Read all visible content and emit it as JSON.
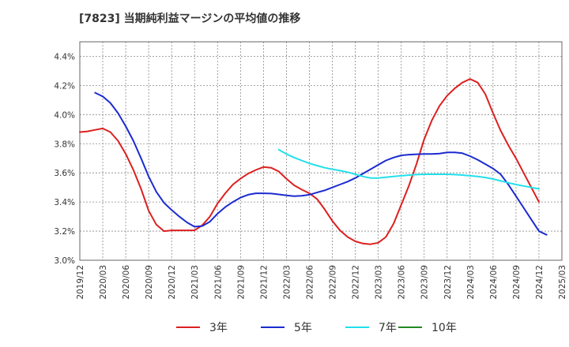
{
  "chart_data": {
    "type": "line",
    "title": "[7823]  当期純利益マージンの平均値の推移",
    "xlabel": "",
    "ylabel": "",
    "x_ticks": [
      "2019/12",
      "2020/03",
      "2020/06",
      "2020/09",
      "2020/12",
      "2021/03",
      "2021/06",
      "2021/09",
      "2021/12",
      "2022/03",
      "2022/06",
      "2022/09",
      "2022/12",
      "2023/03",
      "2023/06",
      "2023/09",
      "2023/12",
      "2024/03",
      "2024/06",
      "2024/09",
      "2024/12",
      "2025/03"
    ],
    "xlim": [
      "2019/12",
      "2025/03"
    ],
    "y_ticks": [
      "3.0%",
      "3.2%",
      "3.4%",
      "3.6%",
      "3.8%",
      "4.0%",
      "4.2%",
      "4.4%"
    ],
    "ylim": [
      3.0,
      4.5
    ],
    "grid": true,
    "legend_position": "bottom",
    "series": [
      {
        "name": "3年",
        "color": "#dd1f1f",
        "points": [
          [
            "2019/12",
            3.88
          ],
          [
            "2020/01",
            3.885
          ],
          [
            "2020/02",
            3.895
          ],
          [
            "2020/03",
            3.905
          ],
          [
            "2020/04",
            3.88
          ],
          [
            "2020/05",
            3.82
          ],
          [
            "2020/06",
            3.73
          ],
          [
            "2020/07",
            3.62
          ],
          [
            "2020/08",
            3.49
          ],
          [
            "2020/09",
            3.34
          ],
          [
            "2020/10",
            3.245
          ],
          [
            "2020/11",
            3.2
          ],
          [
            "2020/12",
            3.205
          ],
          [
            "2021/01",
            3.205
          ],
          [
            "2021/02",
            3.205
          ],
          [
            "2021/03",
            3.205
          ],
          [
            "2021/04",
            3.24
          ],
          [
            "2021/05",
            3.3
          ],
          [
            "2021/06",
            3.39
          ],
          [
            "2021/07",
            3.46
          ],
          [
            "2021/08",
            3.52
          ],
          [
            "2021/09",
            3.56
          ],
          [
            "2021/10",
            3.595
          ],
          [
            "2021/11",
            3.62
          ],
          [
            "2021/12",
            3.64
          ],
          [
            "2022/01",
            3.635
          ],
          [
            "2022/02",
            3.61
          ],
          [
            "2022/03",
            3.56
          ],
          [
            "2022/04",
            3.515
          ],
          [
            "2022/05",
            3.485
          ],
          [
            "2022/06",
            3.46
          ],
          [
            "2022/07",
            3.42
          ],
          [
            "2022/08",
            3.35
          ],
          [
            "2022/09",
            3.27
          ],
          [
            "2022/10",
            3.205
          ],
          [
            "2022/11",
            3.16
          ],
          [
            "2022/12",
            3.13
          ],
          [
            "2023/01",
            3.115
          ],
          [
            "2023/02",
            3.11
          ],
          [
            "2023/03",
            3.12
          ],
          [
            "2023/04",
            3.16
          ],
          [
            "2023/05",
            3.25
          ],
          [
            "2023/06",
            3.38
          ],
          [
            "2023/07",
            3.51
          ],
          [
            "2023/08",
            3.66
          ],
          [
            "2023/09",
            3.83
          ],
          [
            "2023/10",
            3.96
          ],
          [
            "2023/11",
            4.06
          ],
          [
            "2023/12",
            4.13
          ],
          [
            "2024/01",
            4.18
          ],
          [
            "2024/02",
            4.22
          ],
          [
            "2024/03",
            4.245
          ],
          [
            "2024/04",
            4.22
          ],
          [
            "2024/05",
            4.14
          ],
          [
            "2024/06",
            4.01
          ],
          [
            "2024/07",
            3.89
          ],
          [
            "2024/08",
            3.79
          ],
          [
            "2024/09",
            3.7
          ],
          [
            "2024/10",
            3.6
          ],
          [
            "2024/11",
            3.5
          ],
          [
            "2024/12",
            3.4
          ]
        ]
      },
      {
        "name": "5年",
        "color": "#1b2bd0",
        "points": [
          [
            "2020/02",
            4.15
          ],
          [
            "2020/03",
            4.125
          ],
          [
            "2020/04",
            4.08
          ],
          [
            "2020/05",
            4.01
          ],
          [
            "2020/06",
            3.92
          ],
          [
            "2020/07",
            3.82
          ],
          [
            "2020/08",
            3.7
          ],
          [
            "2020/09",
            3.575
          ],
          [
            "2020/10",
            3.47
          ],
          [
            "2020/11",
            3.395
          ],
          [
            "2020/12",
            3.345
          ],
          [
            "2021/01",
            3.3
          ],
          [
            "2021/02",
            3.26
          ],
          [
            "2021/03",
            3.23
          ],
          [
            "2021/04",
            3.235
          ],
          [
            "2021/05",
            3.265
          ],
          [
            "2021/06",
            3.32
          ],
          [
            "2021/07",
            3.365
          ],
          [
            "2021/08",
            3.4
          ],
          [
            "2021/09",
            3.43
          ],
          [
            "2021/10",
            3.45
          ],
          [
            "2021/11",
            3.46
          ],
          [
            "2021/12",
            3.46
          ],
          [
            "2022/01",
            3.458
          ],
          [
            "2022/02",
            3.452
          ],
          [
            "2022/03",
            3.445
          ],
          [
            "2022/04",
            3.44
          ],
          [
            "2022/05",
            3.443
          ],
          [
            "2022/06",
            3.45
          ],
          [
            "2022/07",
            3.465
          ],
          [
            "2022/08",
            3.48
          ],
          [
            "2022/09",
            3.5
          ],
          [
            "2022/10",
            3.52
          ],
          [
            "2022/11",
            3.54
          ],
          [
            "2022/12",
            3.565
          ],
          [
            "2023/01",
            3.595
          ],
          [
            "2023/02",
            3.625
          ],
          [
            "2023/03",
            3.655
          ],
          [
            "2023/04",
            3.685
          ],
          [
            "2023/05",
            3.705
          ],
          [
            "2023/06",
            3.72
          ],
          [
            "2023/07",
            3.725
          ],
          [
            "2023/08",
            3.728
          ],
          [
            "2023/09",
            3.73
          ],
          [
            "2023/10",
            3.73
          ],
          [
            "2023/11",
            3.732
          ],
          [
            "2023/12",
            3.74
          ],
          [
            "2024/01",
            3.74
          ],
          [
            "2024/02",
            3.735
          ],
          [
            "2024/03",
            3.715
          ],
          [
            "2024/04",
            3.69
          ],
          [
            "2024/05",
            3.66
          ],
          [
            "2024/06",
            3.63
          ],
          [
            "2024/07",
            3.59
          ],
          [
            "2024/08",
            3.52
          ],
          [
            "2024/09",
            3.44
          ],
          [
            "2024/10",
            3.36
          ],
          [
            "2024/11",
            3.28
          ],
          [
            "2024/12",
            3.2
          ],
          [
            "2025/01",
            3.175
          ]
        ]
      },
      {
        "name": "7年",
        "color": "#22e0ea",
        "points": [
          [
            "2022/02",
            3.76
          ],
          [
            "2022/03",
            3.73
          ],
          [
            "2022/04",
            3.705
          ],
          [
            "2022/05",
            3.685
          ],
          [
            "2022/06",
            3.665
          ],
          [
            "2022/07",
            3.65
          ],
          [
            "2022/08",
            3.635
          ],
          [
            "2022/09",
            3.625
          ],
          [
            "2022/10",
            3.615
          ],
          [
            "2022/11",
            3.605
          ],
          [
            "2022/12",
            3.59
          ],
          [
            "2023/01",
            3.575
          ],
          [
            "2023/02",
            3.565
          ],
          [
            "2023/03",
            3.565
          ],
          [
            "2023/04",
            3.57
          ],
          [
            "2023/05",
            3.575
          ],
          [
            "2023/06",
            3.58
          ],
          [
            "2023/07",
            3.585
          ],
          [
            "2023/08",
            3.588
          ],
          [
            "2023/09",
            3.59
          ],
          [
            "2023/10",
            3.59
          ],
          [
            "2023/11",
            3.59
          ],
          [
            "2023/12",
            3.59
          ],
          [
            "2024/01",
            3.588
          ],
          [
            "2024/02",
            3.585
          ],
          [
            "2024/03",
            3.58
          ],
          [
            "2024/04",
            3.575
          ],
          [
            "2024/05",
            3.568
          ],
          [
            "2024/06",
            3.558
          ],
          [
            "2024/07",
            3.545
          ],
          [
            "2024/08",
            3.532
          ],
          [
            "2024/09",
            3.52
          ],
          [
            "2024/10",
            3.51
          ],
          [
            "2024/11",
            3.5
          ],
          [
            "2024/12",
            3.49
          ]
        ]
      },
      {
        "name": "10年",
        "color": "#228822",
        "points": []
      }
    ]
  }
}
